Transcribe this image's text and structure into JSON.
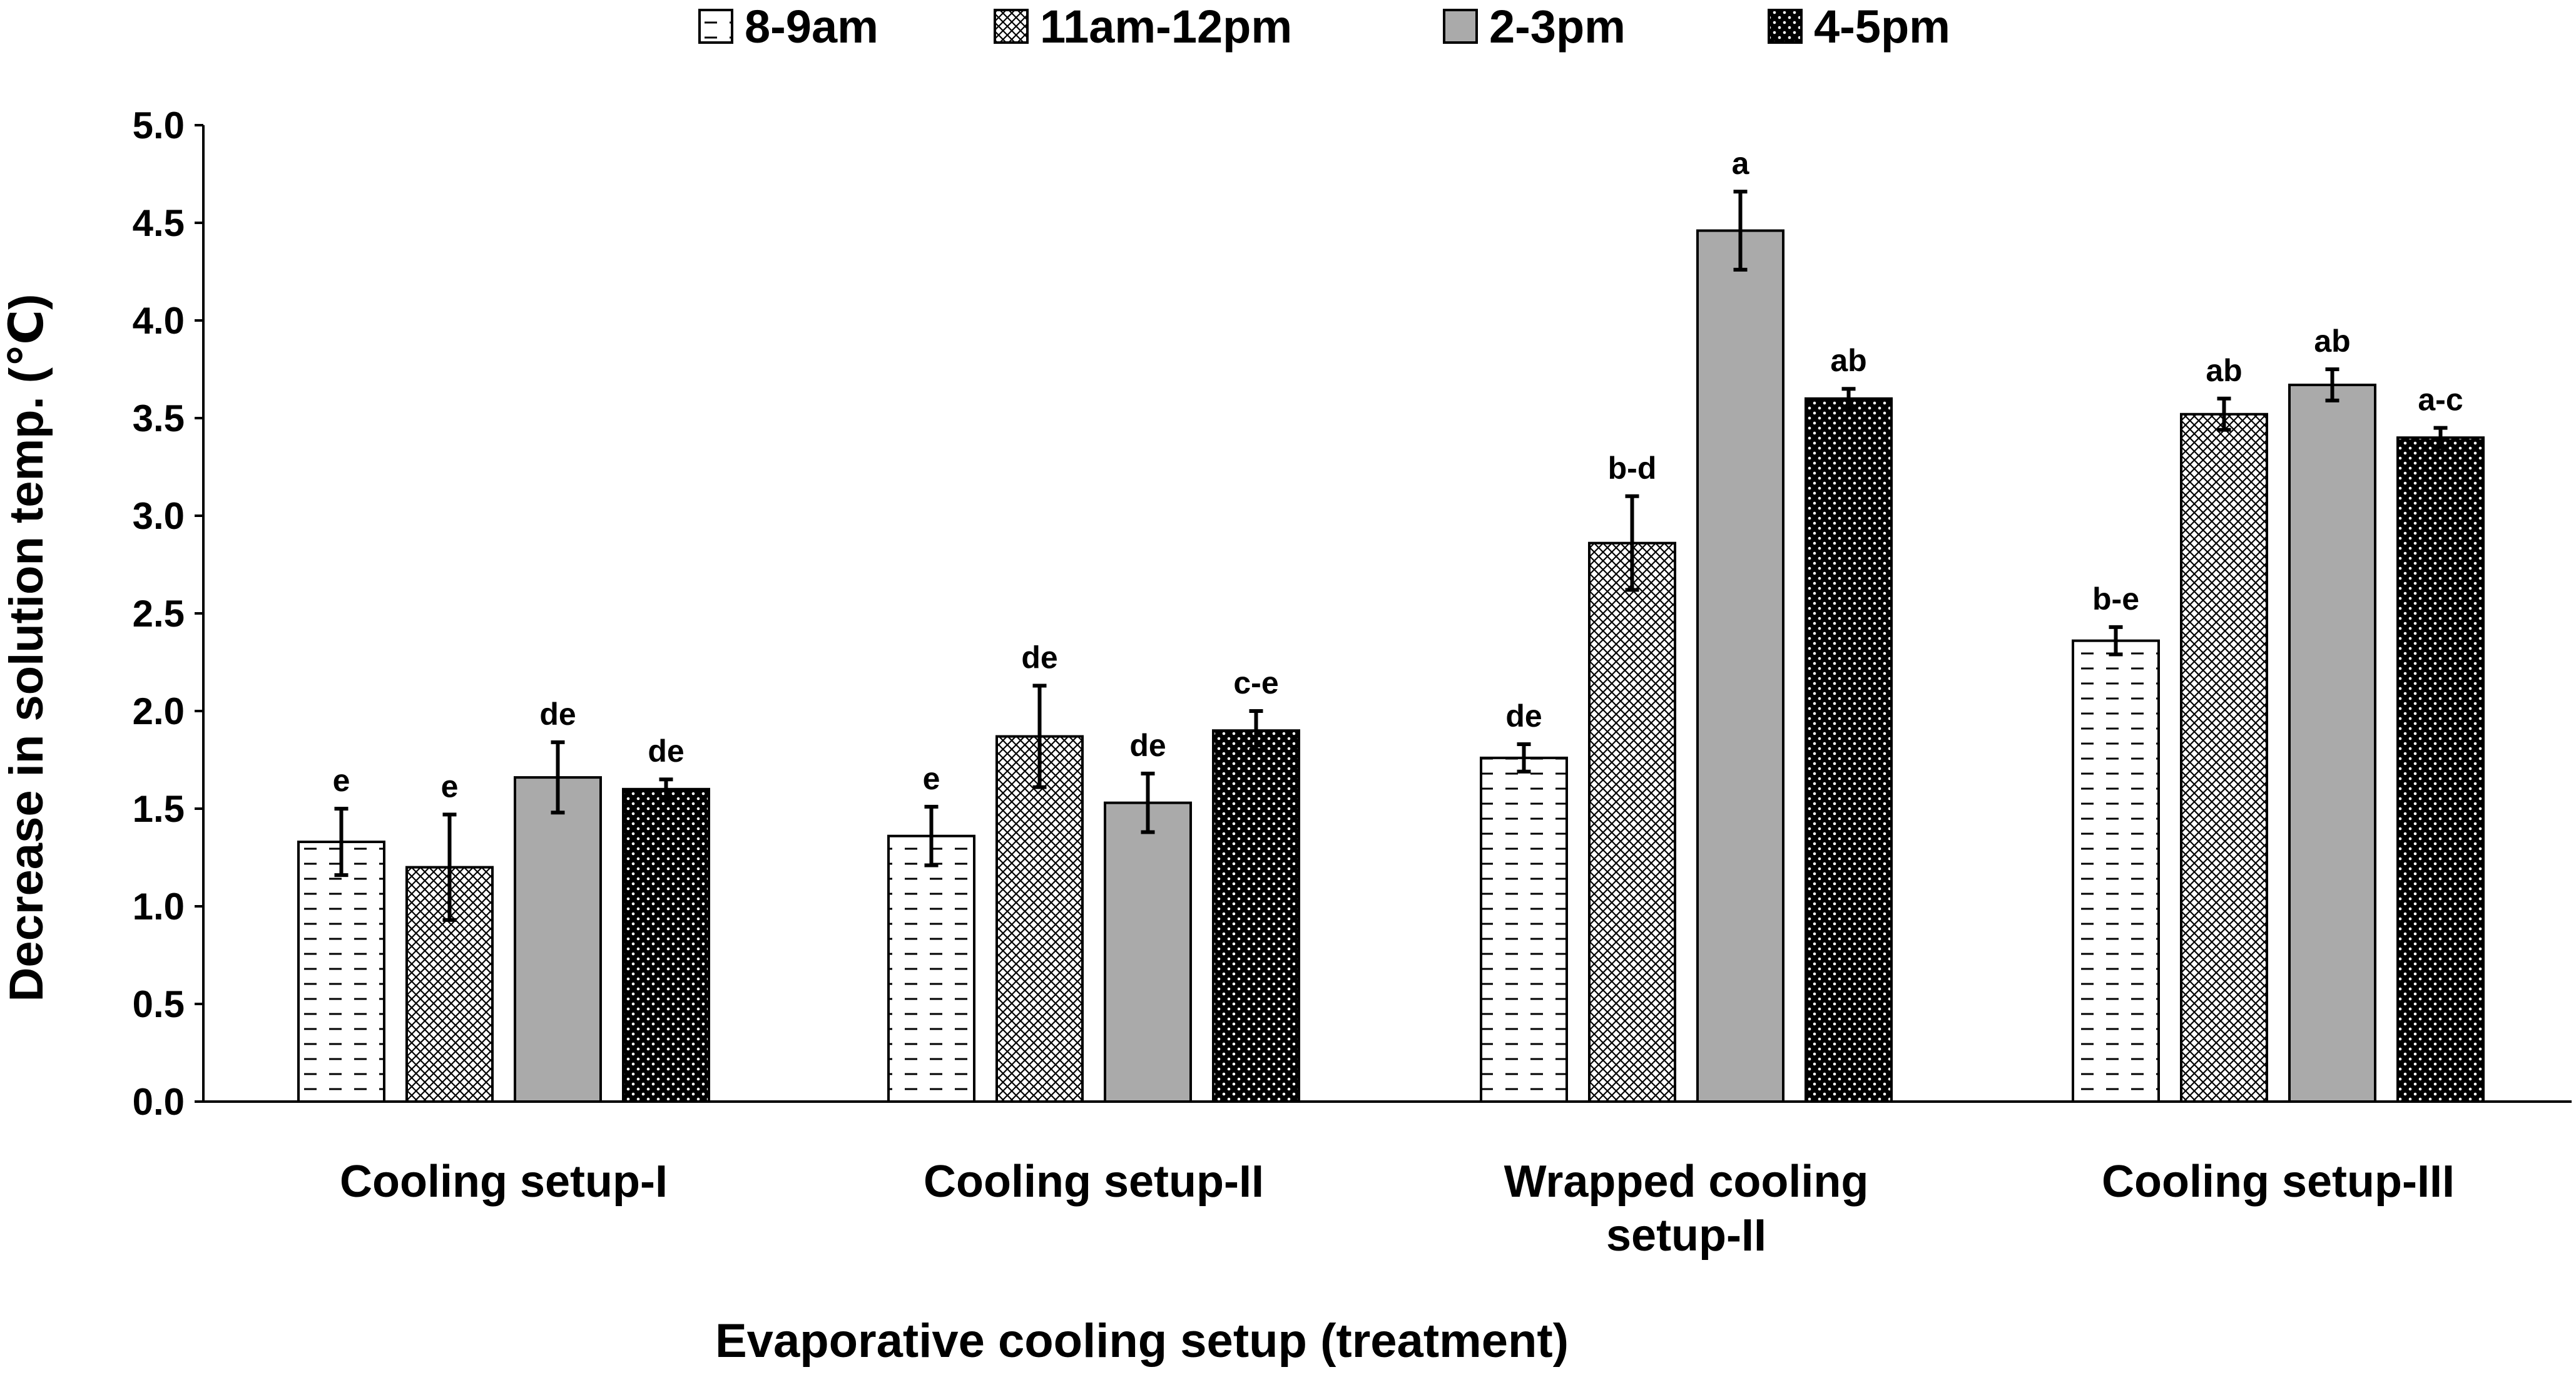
{
  "chart_data": {
    "type": "bar",
    "title": "",
    "xlabel": "Evaporative cooling setup (treatment)",
    "ylabel": "Decrease in solution temp. (℃)",
    "ylim": [
      0,
      5.0
    ],
    "yticks": [
      "0.0",
      "0.5",
      "1.0",
      "1.5",
      "2.0",
      "2.5",
      "3.0",
      "3.5",
      "4.0",
      "4.5",
      "5.0"
    ],
    "legend_position": "top-center",
    "categories": [
      [
        "Cooling setup-I"
      ],
      [
        "Cooling setup-II"
      ],
      [
        "Wrapped cooling",
        "setup-II"
      ],
      [
        "Cooling setup-III"
      ]
    ],
    "series": [
      {
        "name": "8-9am",
        "pattern": "dashes",
        "values": [
          1.33,
          1.36,
          1.76,
          2.36
        ],
        "errors": [
          0.17,
          0.15,
          0.07,
          0.07
        ],
        "labels": [
          "e",
          "e",
          "de",
          "b-e"
        ]
      },
      {
        "name": "11am-12pm",
        "pattern": "crosshatch",
        "values": [
          1.2,
          1.87,
          2.86,
          3.52
        ],
        "errors": [
          0.27,
          0.26,
          0.24,
          0.08
        ],
        "labels": [
          "e",
          "de",
          "b-d",
          "ab"
        ]
      },
      {
        "name": "2-3pm",
        "pattern": "solid-gray",
        "values": [
          1.66,
          1.53,
          4.46,
          3.67
        ],
        "errors": [
          0.18,
          0.15,
          0.2,
          0.08
        ],
        "labels": [
          "de",
          "de",
          "a",
          "ab"
        ]
      },
      {
        "name": "4-5pm",
        "pattern": "dots",
        "values": [
          1.6,
          1.9,
          3.6,
          3.4
        ],
        "errors": [
          0.05,
          0.1,
          0.05,
          0.05
        ],
        "labels": [
          "de",
          "c-e",
          "ab",
          "a-c"
        ]
      }
    ],
    "colors": {
      "gray_fill": "#aaaaaa",
      "dark_fill": "#000000",
      "outline": "#000000"
    }
  }
}
